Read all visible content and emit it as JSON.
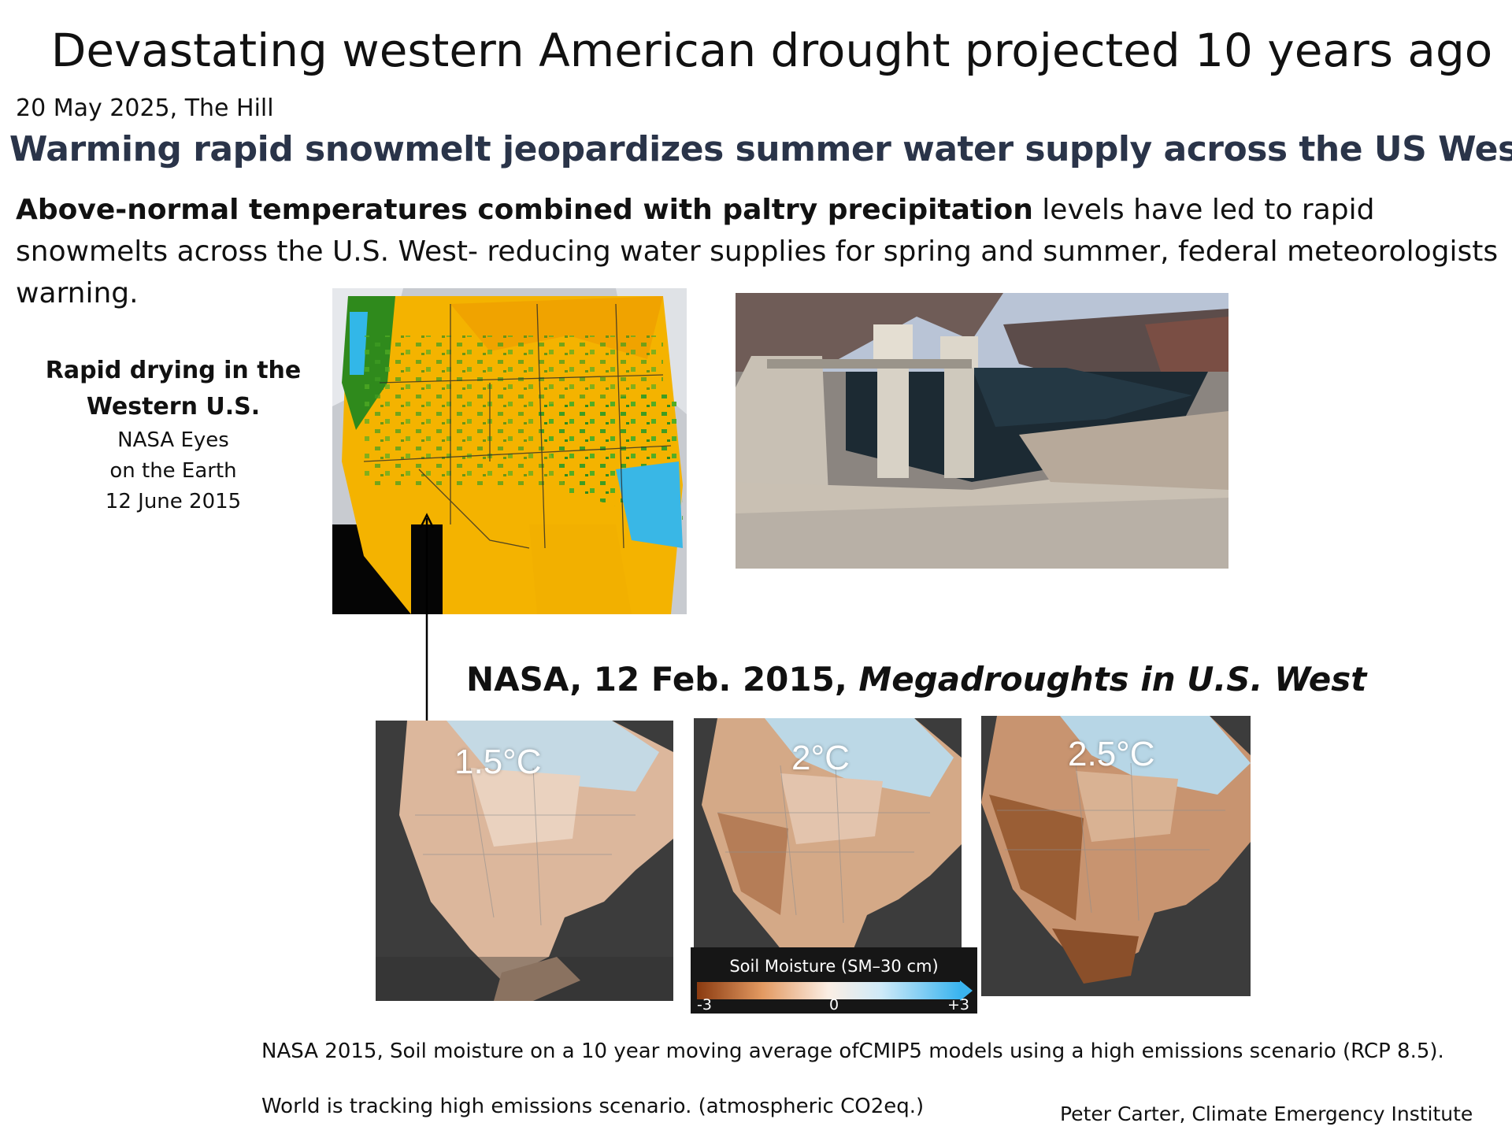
{
  "header": {
    "title": "Devastating western American drought projected 10 years ago",
    "dateline": "20 May 2025, The Hill",
    "headline": "Warming rapid snowmelt jeopardizes summer water supply across the US West"
  },
  "summary": {
    "bold": "Above-normal temperatures combined with paltry precipitation",
    "rest": " levels have led to rapid snowmelts across the U.S. West- reducing water supplies for spring and summer, federal meteorologists  warning."
  },
  "left_caption": {
    "heading_line1": "Rapid drying in the",
    "heading_line2": "Western U.S.",
    "sub_line1": "NASA Eyes",
    "sub_line2": "on the Earth",
    "sub_line3": "12 June 2015"
  },
  "megadrought": {
    "prefix": "NASA, 12 Feb. 2015, ",
    "italic": "Megadroughts in U.S. West"
  },
  "scenarios": [
    {
      "label": "1.5°C"
    },
    {
      "label": "2°C"
    },
    {
      "label": "2.5°C"
    }
  ],
  "legend": {
    "title": "Soil Moisture (SM–30 cm)",
    "min": "-3",
    "mid": "0",
    "max": "+3",
    "colors": {
      "dry": "#8a3a10",
      "neutral": "#fbeee4",
      "wet": "#3ab4ef"
    }
  },
  "notes": {
    "line1": "NASA 2015, Soil moisture on a 10 year moving average ofCMIP5 models using a high emissions scenario (RCP 8.5).",
    "line2": "World is tracking high emissions scenario. (atmospheric CO2eq.)",
    "credit": "Peter Carter,  Climate Emergency Institute"
  }
}
